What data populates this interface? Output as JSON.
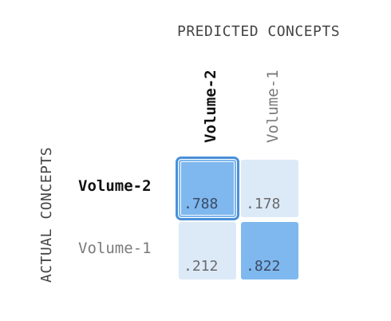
{
  "chart_data": {
    "type": "heatmap",
    "xlabel": "PREDICTED CONCEPTS",
    "ylabel": "ACTUAL CONCEPTS",
    "columns": [
      "Volume-2",
      "Volume-1"
    ],
    "rows": [
      "Volume-2",
      "Volume-1"
    ],
    "values": [
      [
        ".788",
        ".178"
      ],
      [
        ".212",
        ".822"
      ]
    ],
    "numeric_values": [
      [
        0.788,
        0.178
      ],
      [
        0.212,
        0.822
      ]
    ],
    "selected_cell": [
      0,
      0
    ],
    "highlighted_label": "Volume-2",
    "colors": {
      "low": "#dceaf8",
      "high": "#7fb8ee",
      "selected_border": "#4a90d9"
    }
  }
}
